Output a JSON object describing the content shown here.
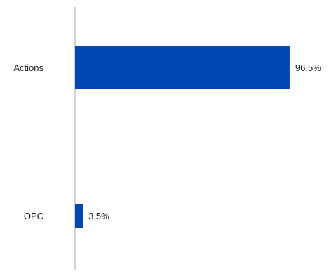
{
  "chart_data": {
    "type": "bar",
    "orientation": "horizontal",
    "categories": [
      "Actions",
      "OPC"
    ],
    "values": [
      96.5,
      3.5
    ],
    "value_labels": [
      "96,5%",
      "3,5%"
    ],
    "title": "",
    "xlabel": "",
    "ylabel": "",
    "xlim": [
      0,
      100
    ],
    "grid": false,
    "legend": "none",
    "bar_color": "#0047b3",
    "axis_color": "#b3b3b3"
  }
}
